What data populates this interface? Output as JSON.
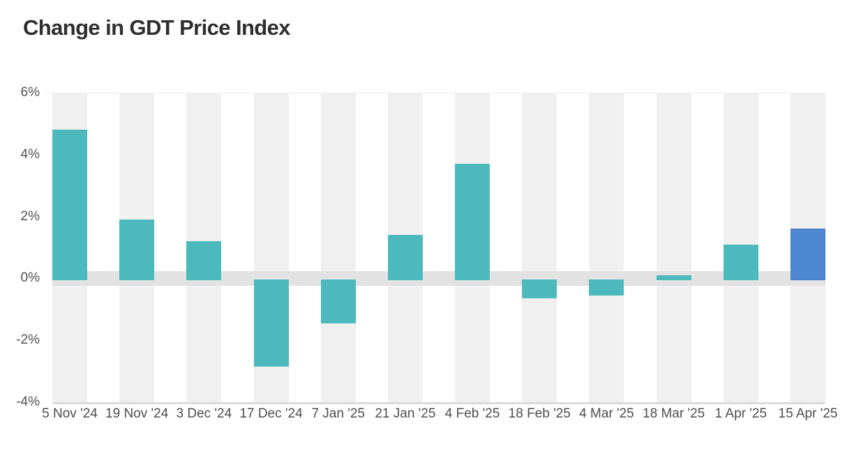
{
  "title": "Change in GDT Price Index",
  "colors": {
    "bar_teal": "#4CB9BC",
    "bar_highlight_blue": "#4E88D1",
    "bar_highlight_border": "#4379BE",
    "stripe_gray": "#F0F0F0",
    "zero_band_gray": "#E2E2E2",
    "baseline_gray": "#DBDBDB",
    "axis_text": "#4D4D4D",
    "title_text": "#2E2E2E"
  },
  "chart_data": {
    "type": "bar",
    "title": "Change in GDT Price Index",
    "categories": [
      "5 Nov '24",
      "19 Nov '24",
      "3 Dec '24",
      "17 Dec '24",
      "7 Jan '25",
      "21 Jan '25",
      "4 Feb '25",
      "18 Feb '25",
      "4 Mar '25",
      "18 Mar '25",
      "1 Apr '25",
      "15 Apr '25"
    ],
    "values": [
      4.8,
      1.9,
      1.2,
      -2.8,
      -1.4,
      1.4,
      3.7,
      -0.6,
      -0.5,
      0.1,
      1.1,
      1.6
    ],
    "bar_colors": [
      "#4CB9BC",
      "#4CB9BC",
      "#4CB9BC",
      "#4CB9BC",
      "#4CB9BC",
      "#4CB9BC",
      "#4CB9BC",
      "#4CB9BC",
      "#4CB9BC",
      "#4CB9BC",
      "#4CB9BC",
      "#4E88D1"
    ],
    "highlighted_category": "15 Apr '25",
    "xlabel": "",
    "ylabel": "",
    "unit": "%",
    "y_ticks": [
      "6%",
      "4%",
      "2%",
      "0%",
      "-2%",
      "-4%"
    ],
    "y_tick_values": [
      6,
      4,
      2,
      0,
      -2,
      -4
    ],
    "ylim": [
      -4,
      6
    ],
    "grid": "zero-band-only",
    "background_stripes": "alternating-category-columns",
    "legend": "none"
  }
}
